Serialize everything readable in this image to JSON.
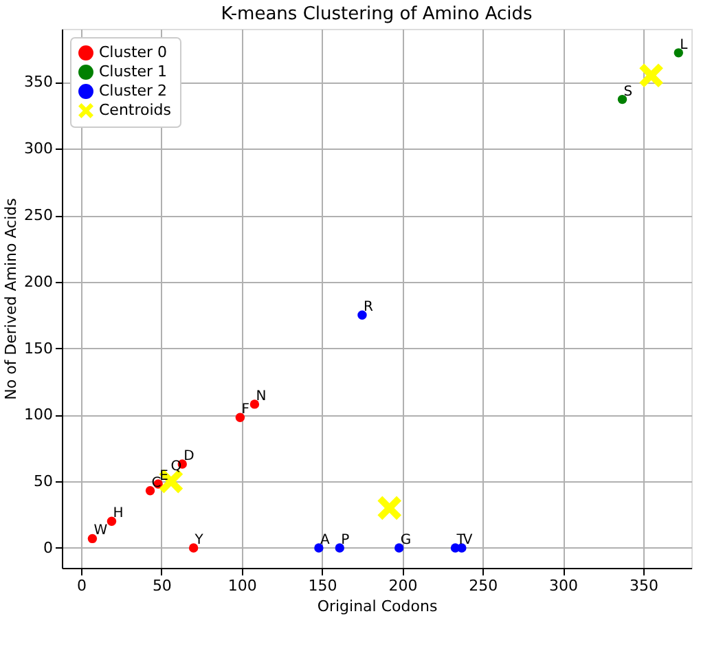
{
  "chart_data": {
    "type": "scatter",
    "title": "K-means Clustering of Amino Acids",
    "xlabel": "Original Codons",
    "ylabel": "No of Derived Amino Acids",
    "xlim": [
      -12,
      380
    ],
    "ylim": [
      -15,
      390
    ],
    "xticks": [
      0,
      50,
      100,
      150,
      200,
      250,
      300,
      350
    ],
    "yticks": [
      0,
      50,
      100,
      150,
      200,
      250,
      300,
      350
    ],
    "grid": true,
    "legend": "top left",
    "series": [
      {
        "name": "Cluster 0",
        "color": "#ff0000",
        "marker": "circle",
        "x": [
          7,
          19,
          43,
          48,
          55,
          63,
          70,
          99,
          108
        ],
        "values": [
          7,
          20,
          43,
          48,
          null,
          63,
          0,
          98,
          108
        ]
      },
      {
        "name": "Cluster 1",
        "color": "#008000",
        "marker": "circle",
        "x": [
          337,
          372
        ],
        "values": [
          337,
          372
        ]
      },
      {
        "name": "Cluster 2",
        "color": "#0000ff",
        "marker": "circle",
        "x": [
          148,
          161,
          175,
          198,
          233,
          237
        ],
        "values": [
          0,
          0,
          175,
          0,
          0,
          0
        ]
      },
      {
        "name": "Centroids",
        "color": "#ffff00",
        "marker": "cross",
        "x": [
          56,
          355,
          192
        ],
        "values": [
          50,
          355,
          30
        ]
      }
    ],
    "annotations": [
      {
        "text": "W",
        "x": 7,
        "y": 7
      },
      {
        "text": "H",
        "x": 19,
        "y": 20
      },
      {
        "text": "C",
        "x": 43,
        "y": 43
      },
      {
        "text": "E",
        "x": 48,
        "y": 48
      },
      {
        "text": "Q",
        "x": 55,
        "y": 55
      },
      {
        "text": "D",
        "x": 63,
        "y": 63
      },
      {
        "text": "Y",
        "x": 70,
        "y": 0
      },
      {
        "text": "F",
        "x": 99,
        "y": 98
      },
      {
        "text": "N",
        "x": 108,
        "y": 108
      },
      {
        "text": "S",
        "x": 337,
        "y": 337
      },
      {
        "text": "L",
        "x": 372,
        "y": 372
      },
      {
        "text": "A",
        "x": 148,
        "y": 0
      },
      {
        "text": "P",
        "x": 161,
        "y": 0
      },
      {
        "text": "R",
        "x": 175,
        "y": 175
      },
      {
        "text": "G",
        "x": 198,
        "y": 0
      },
      {
        "text": "T",
        "x": 233,
        "y": 0
      },
      {
        "text": "V",
        "x": 237,
        "y": 0
      }
    ]
  }
}
